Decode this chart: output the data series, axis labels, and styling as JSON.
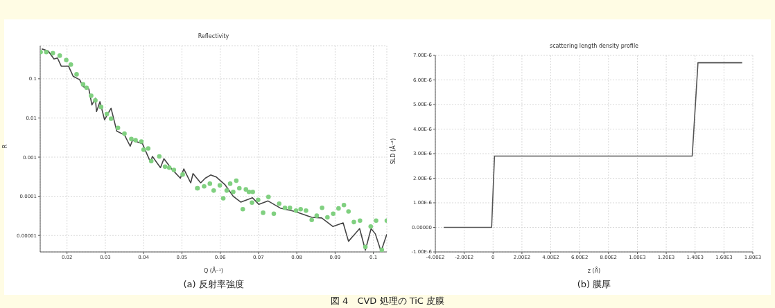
{
  "chart_data": [
    {
      "type": "line",
      "title": "Reflectivity",
      "xlabel": "Q (Å⁻¹)",
      "ylabel": "R",
      "log": "y",
      "grid": true,
      "xlim": [
        0.013,
        0.1035
      ],
      "ylim": [
        3.8e-06,
        0.7
      ],
      "xticks": [
        0.02,
        0.03,
        0.04,
        0.05,
        0.06,
        0.07,
        0.08,
        0.09,
        0.1
      ],
      "yticks": [
        {
          "value": 0.1,
          "label": "0.1"
        },
        {
          "value": 0.01,
          "label": "0.01"
        },
        {
          "value": 0.001,
          "label": "0.001"
        },
        {
          "value": 0.0001,
          "label": "0.0001"
        },
        {
          "value": 1e-05,
          "label": "0.00001"
        }
      ],
      "annotations": [
        "(a) 反射率強度",
        "図 4　CVD 処理の TiC 皮膜"
      ],
      "series": [
        {
          "color": "#444444",
          "marker": "none",
          "line_style": "solid",
          "x": [
            0.0134,
            0.0151,
            0.0166,
            0.0175,
            0.0185,
            0.0204,
            0.0216,
            0.0233,
            0.0242,
            0.0257,
            0.0265,
            0.0274,
            0.0277,
            0.0286,
            0.0298,
            0.0315,
            0.033,
            0.035,
            0.0365,
            0.0371,
            0.0397,
            0.0418,
            0.0423,
            0.0444,
            0.0453,
            0.0473,
            0.0496,
            0.0505,
            0.0523,
            0.0529,
            0.0549,
            0.0561,
            0.0575,
            0.059,
            0.0613,
            0.0634,
            0.0654,
            0.0684,
            0.0701,
            0.0725,
            0.0757,
            0.0795,
            0.0839,
            0.0865,
            0.0894,
            0.0921,
            0.0935,
            0.0964,
            0.0979,
            0.0994,
            0.1005,
            0.102,
            0.1035
          ],
          "values": [
            0.58,
            0.51,
            0.32,
            0.34,
            0.21,
            0.21,
            0.116,
            0.095,
            0.063,
            0.055,
            0.0215,
            0.032,
            0.0145,
            0.026,
            0.009,
            0.0177,
            0.0046,
            0.0037,
            0.0019,
            0.0027,
            0.0022,
            0.00074,
            0.00104,
            0.00054,
            0.00091,
            0.0005,
            0.00029,
            0.0005,
            0.00022,
            0.00038,
            0.00022,
            0.00029,
            0.00035,
            0.00031,
            0.000195,
            0.0001,
            7.1e-05,
            9.2e-05,
            6.2e-05,
            7.6e-05,
            5e-05,
            4.1e-05,
            2.9e-05,
            2.8e-05,
            1.7e-05,
            2.1e-05,
            7.1e-06,
            1.5e-05,
            4.2e-06,
            1.5e-05,
            1.1e-05,
            3.9e-06,
            1.07e-05
          ]
        },
        {
          "type": "scatter",
          "color": "#80d080",
          "marker": "circle",
          "x": [
            0.0131,
            0.0146,
            0.0163,
            0.0181,
            0.0198,
            0.021,
            0.0225,
            0.0242,
            0.0251,
            0.0263,
            0.0274,
            0.0289,
            0.0304,
            0.0315,
            0.0333,
            0.035,
            0.0368,
            0.0379,
            0.0394,
            0.04,
            0.0412,
            0.042,
            0.0441,
            0.0456,
            0.0467,
            0.0479,
            0.0502,
            0.054,
            0.0541,
            0.0558,
            0.0573,
            0.0583,
            0.0599,
            0.0608,
            0.0617,
            0.0626,
            0.0634,
            0.0642,
            0.065,
            0.0659,
            0.0667,
            0.0675,
            0.0683,
            0.0685,
            0.0699,
            0.0712,
            0.0726,
            0.074,
            0.0754,
            0.0769,
            0.0782,
            0.0798,
            0.081,
            0.0824,
            0.0839,
            0.0852,
            0.0866,
            0.088,
            0.0895,
            0.0909,
            0.0923,
            0.0935,
            0.0949,
            0.0965,
            0.0979,
            0.0993,
            0.1007,
            0.1022,
            0.1035
          ],
          "values": [
            0.48,
            0.48,
            0.45,
            0.39,
            0.3,
            0.23,
            0.13,
            0.072,
            0.059,
            0.037,
            0.028,
            0.019,
            0.0126,
            0.0096,
            0.0056,
            0.004,
            0.0029,
            0.0027,
            0.0025,
            0.00155,
            0.00166,
            0.00079,
            0.00104,
            0.00057,
            0.00054,
            0.00047,
            0.00036,
            0.00016,
            0.00016,
            0.00018,
            0.00021,
            0.00014,
            0.00019,
            8.9e-05,
            0.00014,
            0.00021,
            0.00013,
            0.00025,
            0.00016,
            4.7e-05,
            0.00015,
            0.00013,
            6.9e-05,
            0.00013,
            8.1e-05,
            3.8e-05,
            9.6e-05,
            3.6e-05,
            6.5e-05,
            5.1e-05,
            5.1e-05,
            4.3e-05,
            4.7e-05,
            4.3e-05,
            2.5e-05,
            3.2e-05,
            5.1e-05,
            2.9e-05,
            3.6e-05,
            4.9e-05,
            6e-05,
            4.1e-05,
            2.2e-05,
            2.4e-05,
            5.1e-06,
            1.7e-05,
            2.4e-05,
            4.3e-06,
            2.4e-05
          ]
        }
      ]
    },
    {
      "type": "line",
      "title": "scattering length density profile",
      "xlabel": "z (Å)",
      "ylabel": "SLD (Å⁻²)",
      "grid": true,
      "xlim": [
        -400,
        1800
      ],
      "ylim": [
        -1e-06,
        7e-06
      ],
      "xticks": [
        {
          "value": -400,
          "label": "-4.00E2"
        },
        {
          "value": -200,
          "label": "-2.00E2"
        },
        0,
        {
          "value": 200,
          "label": "2.00E2"
        },
        {
          "value": 400,
          "label": "4.00E2"
        },
        {
          "value": 600,
          "label": "6.00E2"
        },
        {
          "value": 800,
          "label": "8.00E2"
        },
        {
          "value": 1000,
          "label": "1.00E3"
        },
        {
          "value": 1200,
          "label": "1.20E3"
        },
        {
          "value": 1400,
          "label": "1.40E3"
        },
        {
          "value": 1600,
          "label": "1.60E3"
        },
        {
          "value": 1800,
          "label": "1.80E3"
        }
      ],
      "yticks": [
        {
          "value": -1e-06,
          "label": "-1.00E-6"
        },
        {
          "value": 0,
          "label": "0.00000"
        },
        {
          "value": 1e-06,
          "label": "1.00E-6"
        },
        {
          "value": 2e-06,
          "label": "2.00E-6"
        },
        {
          "value": 3e-06,
          "label": "3.00E-6"
        },
        {
          "value": 4e-06,
          "label": "4.00E-6"
        },
        {
          "value": 5e-06,
          "label": "5.00E-6"
        },
        {
          "value": 6e-06,
          "label": "6.00E-6"
        },
        {
          "value": 7e-06,
          "label": "7.00E-6"
        }
      ],
      "annotations": [
        "(b) 膜厚"
      ],
      "series": [
        {
          "color": "#555555",
          "marker": "none",
          "line_style": "solid",
          "x": [
            -342,
            -10,
            10,
            1380,
            1420,
            1726
          ],
          "values": [
            0,
            0,
            2.9e-06,
            2.9e-06,
            6.7e-06,
            6.7e-06
          ]
        }
      ]
    }
  ]
}
